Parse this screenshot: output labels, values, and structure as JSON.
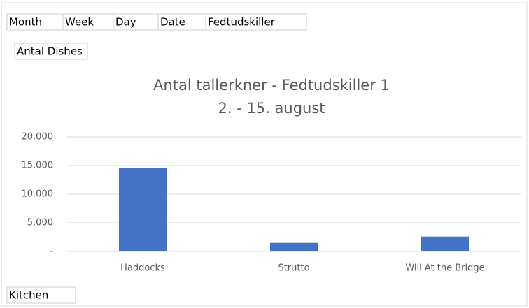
{
  "field_buttons": {
    "columns": [
      "Month",
      "Week",
      "Day",
      "Date",
      "Fedtudskiller"
    ],
    "values": "Antal Dishes",
    "rows": "Kitchen"
  },
  "chart_data": {
    "type": "bar",
    "title": "Antal tallerkner - Fedtudskiller 1",
    "subtitle": "2. - 15. august",
    "categories": [
      "Haddocks",
      "Strutto",
      "Will At the Bridge"
    ],
    "values": [
      14600,
      1500,
      2600
    ],
    "color": "#4472c4",
    "ylim": [
      0,
      20000
    ],
    "yticks": [
      {
        "value": 0,
        "label": "-"
      },
      {
        "value": 5000,
        "label": "5.000"
      },
      {
        "value": 10000,
        "label": "10.000"
      },
      {
        "value": 15000,
        "label": "15.000"
      },
      {
        "value": 20000,
        "label": "20.000"
      }
    ],
    "grid": true
  }
}
